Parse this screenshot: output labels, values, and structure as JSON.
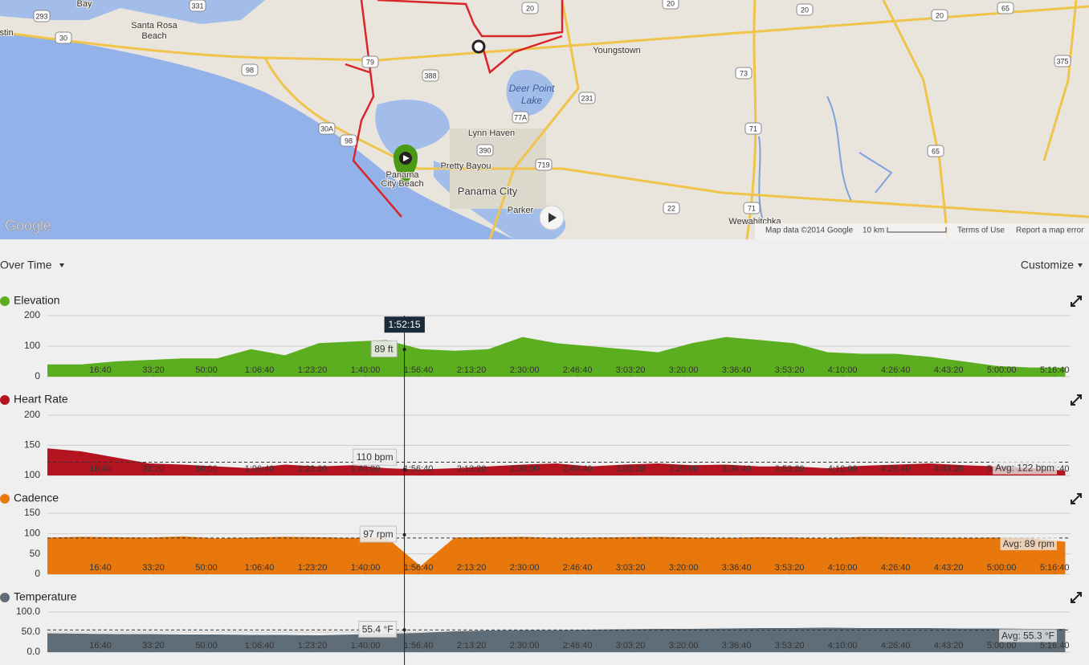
{
  "map": {
    "places": [
      "Bay",
      "Santa Rosa",
      "Beach",
      "stin",
      "Youngstown",
      "Deer Point",
      "Lake",
      "Lynn Haven",
      "Pretty Bayou",
      "Panama City",
      "Panama",
      "City Beach",
      "Parker",
      "Wewahitchka"
    ],
    "shields": [
      "293",
      "331",
      "30",
      "98",
      "388",
      "79",
      "20",
      "20",
      "20",
      "20",
      "65",
      "375",
      "73",
      "231",
      "77A",
      "390",
      "719",
      "30A",
      "98",
      "71",
      "71",
      "65",
      "22"
    ],
    "logo": "Google",
    "map_data": "Map data ©2014 Google",
    "scale": "10 km",
    "terms": "Terms of Use",
    "report": "Report a map error"
  },
  "controls": {
    "view": "Over Time",
    "customize": "Customize"
  },
  "cursor": {
    "value": 6735,
    "label": "1:52:15"
  },
  "chart_data": [
    {
      "type": "area",
      "title": "Elevation",
      "color": "#5bae1f",
      "x": [
        0,
        640,
        1280,
        1920,
        2560,
        3200,
        3840,
        4480,
        5120,
        5760,
        6400,
        7040,
        7680,
        8320,
        8960,
        9600,
        10240,
        10880,
        11520,
        12160,
        12800,
        13440,
        14080,
        14720,
        15360,
        16000,
        16640,
        17280,
        17920,
        18560,
        19200
      ],
      "values": [
        40,
        40,
        50,
        55,
        60,
        60,
        90,
        70,
        110,
        115,
        120,
        90,
        85,
        90,
        130,
        110,
        100,
        90,
        80,
        110,
        130,
        120,
        110,
        80,
        75,
        75,
        65,
        50,
        35,
        30,
        30
      ],
      "xlim": [
        0,
        19300
      ],
      "ylim": [
        0,
        200
      ],
      "yticks": [
        0,
        100,
        200
      ],
      "xticks": [
        {
          "value": 1000,
          "label": "16:40"
        },
        {
          "value": 2000,
          "label": "33:20"
        },
        {
          "value": 3000,
          "label": "50:00"
        },
        {
          "value": 4000,
          "label": "1:06:40"
        },
        {
          "value": 5000,
          "label": "1:23:20"
        },
        {
          "value": 6000,
          "label": "1:40:00"
        },
        {
          "value": 7000,
          "label": "1:56:40"
        },
        {
          "value": 8000,
          "label": "2:13:20"
        },
        {
          "value": 9000,
          "label": "2:30:00"
        },
        {
          "value": 10000,
          "label": "2:46:40"
        },
        {
          "value": 11000,
          "label": "3:03:20"
        },
        {
          "value": 12000,
          "label": "3:20:00"
        },
        {
          "value": 13000,
          "label": "3:36:40"
        },
        {
          "value": 14000,
          "label": "3:53:20"
        },
        {
          "value": 15000,
          "label": "4:10:00"
        },
        {
          "value": 16000,
          "label": "4:26:40"
        },
        {
          "value": 17000,
          "label": "4:43:20"
        },
        {
          "value": 18000,
          "label": "5:00:00"
        },
        {
          "value": 19000,
          "label": "5:16:40"
        }
      ],
      "readout": {
        "value": 89,
        "label": "89 ft"
      }
    },
    {
      "type": "area",
      "title": "Heart Rate",
      "color": "#b3141f",
      "x": [
        0,
        640,
        1280,
        1920,
        2560,
        3200,
        3840,
        4480,
        5120,
        5760,
        6400,
        7040,
        7680,
        8320,
        8960,
        9600,
        10240,
        10880,
        11520,
        12160,
        12800,
        13440,
        14080,
        14720,
        15360,
        16000,
        16640,
        17280,
        17920,
        18560,
        19200
      ],
      "values": [
        145,
        140,
        130,
        120,
        118,
        115,
        112,
        118,
        115,
        117,
        112,
        110,
        112,
        115,
        118,
        120,
        115,
        118,
        120,
        117,
        118,
        115,
        115,
        112,
        116,
        118,
        120,
        117,
        115,
        112,
        108
      ],
      "xlim": [
        0,
        19300
      ],
      "ylim": [
        100,
        200
      ],
      "yticks": [
        100,
        150,
        200
      ],
      "xticks": [
        {
          "value": 1000,
          "label": "16:40"
        },
        {
          "value": 2000,
          "label": "33:20"
        },
        {
          "value": 3000,
          "label": "50:00"
        },
        {
          "value": 4000,
          "label": "1:06:40"
        },
        {
          "value": 5000,
          "label": "1:23:20"
        },
        {
          "value": 6000,
          "label": "1:40:00"
        },
        {
          "value": 7000,
          "label": "1:56:40"
        },
        {
          "value": 8000,
          "label": "2:13:20"
        },
        {
          "value": 9000,
          "label": "2:30:00"
        },
        {
          "value": 10000,
          "label": "2:46:40"
        },
        {
          "value": 11000,
          "label": "3:03:20"
        },
        {
          "value": 12000,
          "label": "3:20:00"
        },
        {
          "value": 13000,
          "label": "3:36:40"
        },
        {
          "value": 14000,
          "label": "3:53:20"
        },
        {
          "value": 15000,
          "label": "4:10:00"
        },
        {
          "value": 16000,
          "label": "4:26:40"
        },
        {
          "value": 17000,
          "label": "4:43:20"
        },
        {
          "value": 18000,
          "label": "5:00:00"
        },
        {
          "value": 19000,
          "label": "5:16:40"
        }
      ],
      "readout": {
        "value": 110,
        "label": "110 bpm"
      },
      "average": {
        "value": 122,
        "label": "Avg: 122 bpm"
      }
    },
    {
      "type": "area",
      "title": "Cadence",
      "color": "#e8780c",
      "x": [
        0,
        640,
        1280,
        1920,
        2560,
        3200,
        3840,
        4480,
        5120,
        5760,
        6400,
        7040,
        7680,
        8320,
        8960,
        9600,
        10240,
        10880,
        11520,
        12160,
        12800,
        13440,
        14080,
        14720,
        15360,
        16000,
        16640,
        17280,
        17920,
        18560,
        19200
      ],
      "values": [
        90,
        92,
        91,
        90,
        93,
        88,
        90,
        92,
        91,
        89,
        90,
        20,
        90,
        91,
        92,
        89,
        90,
        91,
        92,
        90,
        89,
        91,
        90,
        88,
        92,
        91,
        90,
        89,
        90,
        88,
        80
      ],
      "xlim": [
        0,
        19300
      ],
      "ylim": [
        0,
        150
      ],
      "yticks": [
        0,
        50,
        100,
        150
      ],
      "xticks": [
        {
          "value": 1000,
          "label": "16:40"
        },
        {
          "value": 2000,
          "label": "33:20"
        },
        {
          "value": 3000,
          "label": "50:00"
        },
        {
          "value": 4000,
          "label": "1:06:40"
        },
        {
          "value": 5000,
          "label": "1:23:20"
        },
        {
          "value": 6000,
          "label": "1:40:00"
        },
        {
          "value": 7000,
          "label": "1:56:40"
        },
        {
          "value": 8000,
          "label": "2:13:20"
        },
        {
          "value": 9000,
          "label": "2:30:00"
        },
        {
          "value": 10000,
          "label": "2:46:40"
        },
        {
          "value": 11000,
          "label": "3:03:20"
        },
        {
          "value": 12000,
          "label": "3:20:00"
        },
        {
          "value": 13000,
          "label": "3:36:40"
        },
        {
          "value": 14000,
          "label": "3:53:20"
        },
        {
          "value": 15000,
          "label": "4:10:00"
        },
        {
          "value": 16000,
          "label": "4:26:40"
        },
        {
          "value": 17000,
          "label": "4:43:20"
        },
        {
          "value": 18000,
          "label": "5:00:00"
        },
        {
          "value": 19000,
          "label": "5:16:40"
        }
      ],
      "readout": {
        "value": 97,
        "label": "97 rpm"
      },
      "average": {
        "value": 89,
        "label": "Avg: 89 rpm"
      }
    },
    {
      "type": "area",
      "title": "Temperature",
      "color": "#5f6d78",
      "x": [
        0,
        640,
        1280,
        1920,
        2560,
        3200,
        3840,
        4480,
        5120,
        5760,
        6400,
        7040,
        7680,
        8320,
        8960,
        9600,
        10240,
        10880,
        11520,
        12160,
        12800,
        13440,
        14080,
        14720,
        15360,
        16000,
        16640,
        17280,
        17920,
        18560,
        19200
      ],
      "values": [
        47,
        46,
        45,
        45,
        44,
        44,
        43,
        43,
        42,
        44,
        46,
        48,
        52,
        54,
        55,
        55,
        56,
        57,
        58,
        58,
        59,
        60,
        60,
        61,
        60,
        60,
        60,
        59,
        59,
        58,
        58
      ],
      "xlim": [
        0,
        19300
      ],
      "ylim": [
        0,
        100
      ],
      "yticks": [
        {
          "value": 0,
          "label": "0.0"
        },
        {
          "value": 50,
          "label": "50.0"
        },
        {
          "value": 100,
          "label": "100.0"
        }
      ],
      "xticks": [
        {
          "value": 1000,
          "label": "16:40"
        },
        {
          "value": 2000,
          "label": "33:20"
        },
        {
          "value": 3000,
          "label": "50:00"
        },
        {
          "value": 4000,
          "label": "1:06:40"
        },
        {
          "value": 5000,
          "label": "1:23:20"
        },
        {
          "value": 6000,
          "label": "1:40:00"
        },
        {
          "value": 7000,
          "label": "1:56:40"
        },
        {
          "value": 8000,
          "label": "2:13:20"
        },
        {
          "value": 9000,
          "label": "2:30:00"
        },
        {
          "value": 10000,
          "label": "2:46:40"
        },
        {
          "value": 11000,
          "label": "3:03:20"
        },
        {
          "value": 12000,
          "label": "3:20:00"
        },
        {
          "value": 13000,
          "label": "3:36:40"
        },
        {
          "value": 14000,
          "label": "3:53:20"
        },
        {
          "value": 15000,
          "label": "4:10:00"
        },
        {
          "value": 16000,
          "label": "4:26:40"
        },
        {
          "value": 17000,
          "label": "4:43:20"
        },
        {
          "value": 18000,
          "label": "5:00:00"
        },
        {
          "value": 19000,
          "label": "5:16:40"
        }
      ],
      "readout": {
        "value": 55.4,
        "label": "55.4 °F"
      },
      "average": {
        "value": 55.3,
        "label": "Avg: 55.3 °F"
      }
    }
  ]
}
